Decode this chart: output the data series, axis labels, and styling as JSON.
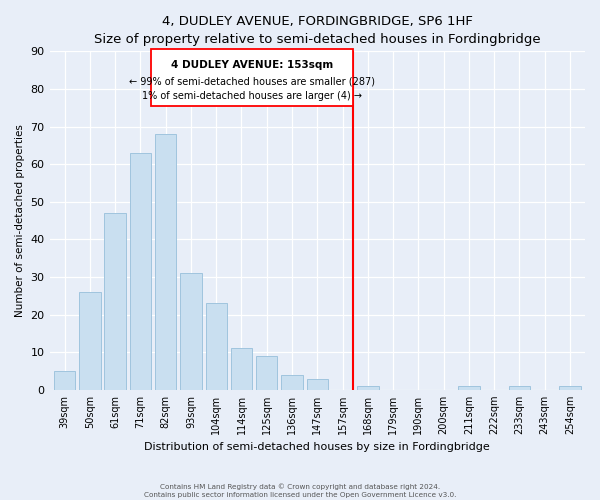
{
  "title": "4, DUDLEY AVENUE, FORDINGBRIDGE, SP6 1HF",
  "subtitle": "Size of property relative to semi-detached houses in Fordingbridge",
  "xlabel": "Distribution of semi-detached houses by size in Fordingbridge",
  "ylabel": "Number of semi-detached properties",
  "bar_labels": [
    "39sqm",
    "50sqm",
    "61sqm",
    "71sqm",
    "82sqm",
    "93sqm",
    "104sqm",
    "114sqm",
    "125sqm",
    "136sqm",
    "147sqm",
    "157sqm",
    "168sqm",
    "179sqm",
    "190sqm",
    "200sqm",
    "211sqm",
    "222sqm",
    "233sqm",
    "243sqm",
    "254sqm"
  ],
  "bar_values": [
    5,
    26,
    47,
    63,
    68,
    31,
    23,
    11,
    9,
    4,
    3,
    0,
    1,
    0,
    0,
    0,
    1,
    0,
    1,
    0,
    1
  ],
  "bar_color": "#c9dff0",
  "bar_edge_color": "#a0c4de",
  "ylim": [
    0,
    90
  ],
  "yticks": [
    0,
    10,
    20,
    30,
    40,
    50,
    60,
    70,
    80,
    90
  ],
  "property_line_color": "red",
  "annotation_title": "4 DUDLEY AVENUE: 153sqm",
  "annotation_line1": "← 99% of semi-detached houses are smaller (287)",
  "annotation_line2": "1% of semi-detached houses are larger (4) →",
  "footer_line1": "Contains HM Land Registry data © Crown copyright and database right 2024.",
  "footer_line2": "Contains public sector information licensed under the Open Government Licence v3.0.",
  "background_color": "#e8eef8",
  "grid_color": "#ffffff"
}
